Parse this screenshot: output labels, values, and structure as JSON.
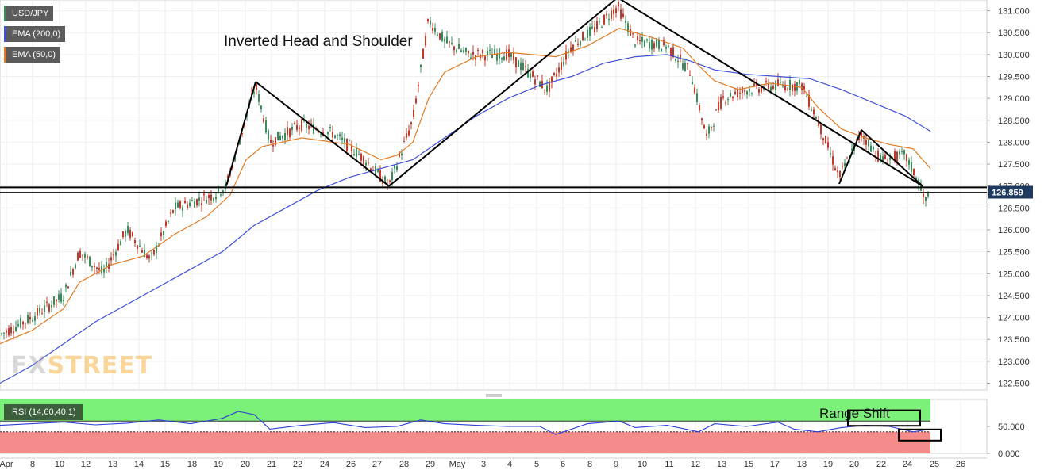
{
  "instrument": "USD/JPY",
  "legend": {
    "symbol": "USD/JPY",
    "ema200": "EMA (200,0)",
    "ema50": "EMA (50,0)",
    "rsi": "RSI (14,60,40,1)"
  },
  "annotations": {
    "pattern": "Inverted Head and Shoulder",
    "range_shift": "Range Shift"
  },
  "watermark": {
    "fx": "FX",
    "street": "STREET"
  },
  "colors": {
    "up_candle": "#3a8c5c",
    "down_candle": "#c0392b",
    "ema200": "#3f51d8",
    "ema50": "#e07b24",
    "rsi_line": "#2b3fd6",
    "rsi_bull_zone": "#6ef06a",
    "rsi_bear_zone": "#f47f7f",
    "price_tag": "#1f3a5f"
  },
  "chart_data": [
    {
      "type": "candlestick",
      "title": "USD/JPY",
      "ylabel": "",
      "ylim": [
        122.4,
        131.3
      ],
      "y_ticks": [
        "122.500",
        "123.000",
        "123.500",
        "124.000",
        "124.500",
        "125.000",
        "125.500",
        "126.000",
        "126.500",
        "127.000",
        "127.500",
        "128.000",
        "128.500",
        "129.000",
        "129.500",
        "130.000",
        "130.500",
        "131.000"
      ],
      "x_ticks": [
        "Apr",
        "8",
        "10",
        "12",
        "13",
        "14",
        "15",
        "18",
        "19",
        "20",
        "21",
        "22",
        "24",
        "26",
        "27",
        "28",
        "29",
        "May",
        "3",
        "4",
        "5",
        "6",
        "8",
        "9",
        "10",
        "11",
        "12",
        "13",
        "15",
        "17",
        "18",
        "19",
        "20",
        "22",
        "24",
        "25",
        "26"
      ],
      "current_price": "126.859",
      "neckline": 126.97,
      "series": [
        {
          "name": "EMA (200,0)",
          "points": [
            [
              0,
              122.5
            ],
            [
              40,
              122.9
            ],
            [
              80,
              123.4
            ],
            [
              120,
              123.9
            ],
            [
              160,
              124.3
            ],
            [
              200,
              124.7
            ],
            [
              240,
              125.1
            ],
            [
              280,
              125.5
            ],
            [
              320,
              126.1
            ],
            [
              360,
              126.5
            ],
            [
              400,
              126.9
            ],
            [
              440,
              127.2
            ],
            [
              480,
              127.4
            ],
            [
              520,
              127.6
            ],
            [
              560,
              128.1
            ],
            [
              600,
              128.6
            ],
            [
              640,
              129.0
            ],
            [
              680,
              129.3
            ],
            [
              720,
              129.5
            ],
            [
              760,
              129.8
            ],
            [
              800,
              129.95
            ],
            [
              840,
              130.0
            ],
            [
              870,
              129.85
            ],
            [
              900,
              129.65
            ],
            [
              940,
              129.55
            ],
            [
              980,
              129.5
            ],
            [
              1020,
              129.45
            ],
            [
              1060,
              129.2
            ],
            [
              1100,
              128.9
            ],
            [
              1140,
              128.6
            ],
            [
              1172,
              128.25
            ]
          ]
        },
        {
          "name": "EMA (50,0)",
          "points": [
            [
              0,
              123.4
            ],
            [
              40,
              123.7
            ],
            [
              80,
              124.2
            ],
            [
              100,
              124.8
            ],
            [
              140,
              125.2
            ],
            [
              180,
              125.4
            ],
            [
              220,
              125.9
            ],
            [
              260,
              126.3
            ],
            [
              290,
              126.8
            ],
            [
              310,
              127.6
            ],
            [
              330,
              127.9
            ],
            [
              380,
              128.1
            ],
            [
              440,
              127.95
            ],
            [
              480,
              127.6
            ],
            [
              500,
              127.7
            ],
            [
              520,
              128.0
            ],
            [
              540,
              129.0
            ],
            [
              560,
              129.6
            ],
            [
              600,
              129.95
            ],
            [
              640,
              130.05
            ],
            [
              700,
              129.95
            ],
            [
              740,
              130.2
            ],
            [
              780,
              130.6
            ],
            [
              820,
              130.4
            ],
            [
              860,
              130.15
            ],
            [
              880,
              129.75
            ],
            [
              900,
              129.4
            ],
            [
              930,
              129.2
            ],
            [
              970,
              129.35
            ],
            [
              1010,
              129.25
            ],
            [
              1030,
              128.8
            ],
            [
              1060,
              128.3
            ],
            [
              1090,
              128.1
            ],
            [
              1120,
              127.95
            ],
            [
              1150,
              127.85
            ],
            [
              1172,
              127.4
            ]
          ]
        }
      ],
      "pattern_lines": [
        [
          [
            285,
            127.0
          ],
          [
            322,
            129.38
          ]
        ],
        [
          [
            322,
            129.38
          ],
          [
            490,
            127.0
          ]
        ],
        [
          [
            490,
            127.0
          ],
          [
            778,
            131.3
          ]
        ],
        [
          [
            778,
            131.3
          ],
          [
            1162,
            127.0
          ]
        ],
        [
          [
            1057,
            127.05
          ],
          [
            1085,
            128.28
          ]
        ],
        [
          [
            1085,
            128.28
          ],
          [
            1162,
            127.0
          ]
        ]
      ]
    },
    {
      "type": "line",
      "title": "RSI (14,60,40,1)",
      "ylim": [
        0,
        100
      ],
      "y_ticks": [
        "0.000",
        "50.000"
      ],
      "overbought": 60,
      "oversold": 40,
      "series": [
        {
          "name": "RSI (14,60,40,1)",
          "points": [
            [
              0,
              52
            ],
            [
              40,
              55
            ],
            [
              80,
              58
            ],
            [
              120,
              53
            ],
            [
              160,
              56
            ],
            [
              200,
              62
            ],
            [
              240,
              55
            ],
            [
              280,
              65
            ],
            [
              300,
              78
            ],
            [
              320,
              72
            ],
            [
              340,
              45
            ],
            [
              380,
              52
            ],
            [
              420,
              57
            ],
            [
              460,
              48
            ],
            [
              500,
              50
            ],
            [
              530,
              62
            ],
            [
              560,
              55
            ],
            [
              600,
              52
            ],
            [
              640,
              50
            ],
            [
              680,
              50
            ],
            [
              700,
              35
            ],
            [
              740,
              55
            ],
            [
              780,
              60
            ],
            [
              800,
              48
            ],
            [
              840,
              52
            ],
            [
              880,
              40
            ],
            [
              900,
              55
            ],
            [
              940,
              50
            ],
            [
              980,
              58
            ],
            [
              1000,
              45
            ],
            [
              1030,
              40
            ],
            [
              1060,
              48
            ],
            [
              1090,
              52
            ],
            [
              1120,
              50
            ],
            [
              1150,
              40
            ],
            [
              1172,
              45
            ]
          ]
        }
      ]
    }
  ]
}
